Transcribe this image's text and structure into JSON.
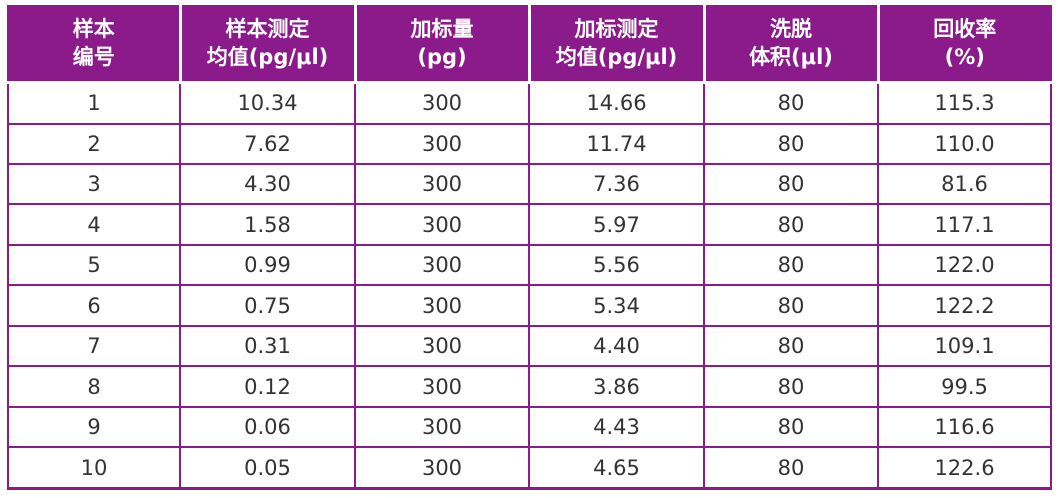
{
  "accent_color": "#8b1a8a",
  "table": {
    "headers": [
      "样本\n编号",
      "样本测定\n均值(pg/μl)",
      "加标量\n(pg)",
      "加标测定\n均值(pg/μl)",
      "洗脱\n体积(μl)",
      "回收率\n(%)"
    ],
    "rows": [
      [
        "1",
        "10.34",
        "300",
        "14.66",
        "80",
        "115.3"
      ],
      [
        "2",
        "7.62",
        "300",
        "11.74",
        "80",
        "110.0"
      ],
      [
        "3",
        "4.30",
        "300",
        "7.36",
        "80",
        "81.6"
      ],
      [
        "4",
        "1.58",
        "300",
        "5.97",
        "80",
        "117.1"
      ],
      [
        "5",
        "0.99",
        "300",
        "5.56",
        "80",
        "122.0"
      ],
      [
        "6",
        "0.75",
        "300",
        "5.34",
        "80",
        "122.2"
      ],
      [
        "7",
        "0.31",
        "300",
        "4.40",
        "80",
        "109.1"
      ],
      [
        "8",
        "0.12",
        "300",
        "3.86",
        "80",
        "99.5"
      ],
      [
        "9",
        "0.06",
        "300",
        "4.43",
        "80",
        "116.6"
      ],
      [
        "10",
        "0.05",
        "300",
        "4.65",
        "80",
        "122.6"
      ]
    ]
  }
}
